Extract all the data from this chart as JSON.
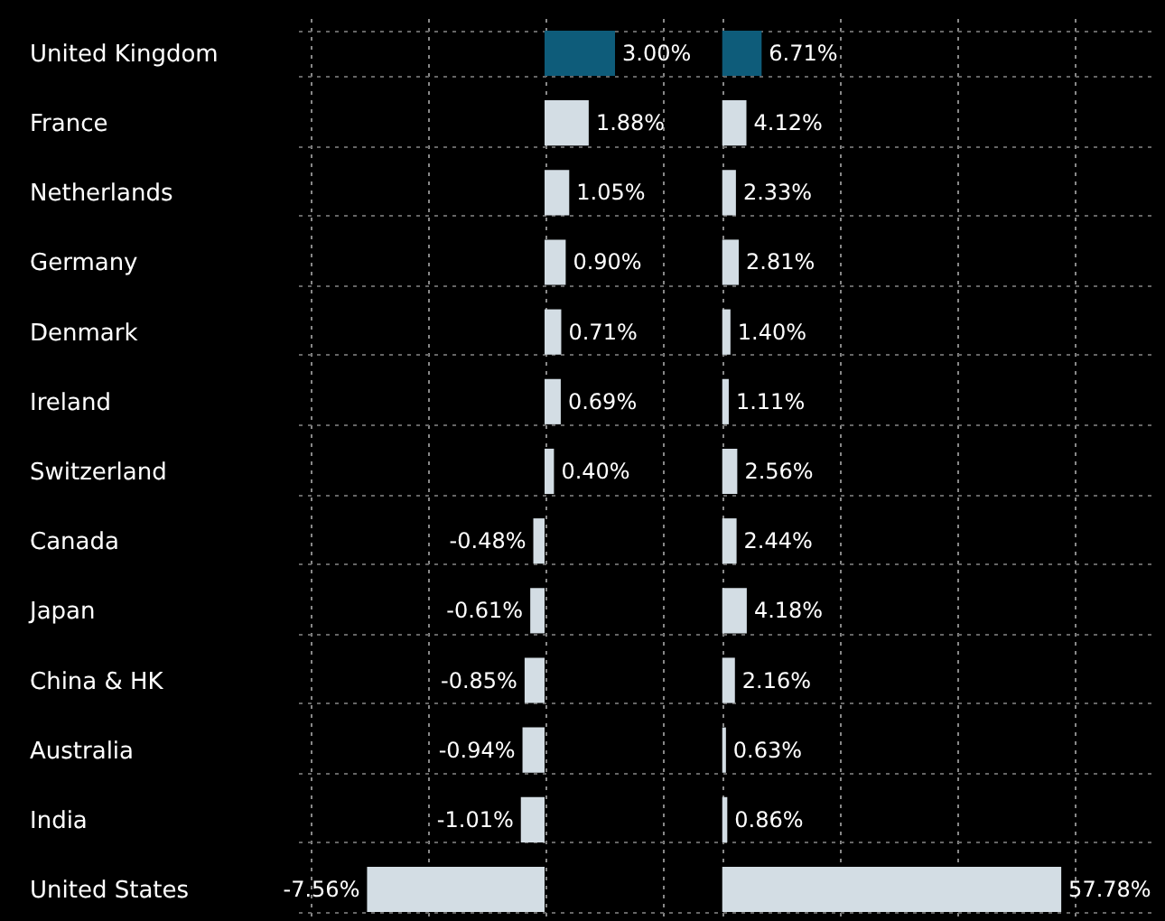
{
  "chart_data": [
    {
      "type": "bar",
      "orientation": "horizontal",
      "categories": [
        "United Kingdom",
        "France",
        "Netherlands",
        "Germany",
        "Denmark",
        "Ireland",
        "Switzerland",
        "Canada",
        "Japan",
        "China & HK",
        "Australia",
        "India",
        "United States"
      ],
      "values": [
        3.0,
        1.88,
        1.05,
        0.9,
        0.71,
        0.69,
        0.4,
        -0.48,
        -0.61,
        -0.85,
        -0.94,
        -1.01,
        -7.56
      ],
      "value_labels": [
        "3.00%",
        "1.88%",
        "1.05%",
        "0.90%",
        "0.71%",
        "0.69%",
        "0.40%",
        "-0.48%",
        "-0.61%",
        "-0.85%",
        "-0.94%",
        "-1.01%",
        "-7.56%"
      ],
      "colors": [
        "#0e5c7a",
        "#d3dde4",
        "#d3dde4",
        "#d3dde4",
        "#d3dde4",
        "#d3dde4",
        "#d3dde4",
        "#d3dde4",
        "#d3dde4",
        "#d3dde4",
        "#d3dde4",
        "#d3dde4",
        "#d3dde4"
      ],
      "xlim": [
        -10.5,
        7
      ],
      "xticks": [
        -10,
        -5,
        0,
        5
      ],
      "grid": true,
      "tick_labels": "y"
    },
    {
      "type": "bar",
      "orientation": "horizontal",
      "categories": [
        null,
        null,
        null,
        null,
        null,
        null,
        null,
        null,
        null,
        null,
        null,
        null,
        null
      ],
      "values": [
        6.71,
        4.12,
        2.33,
        2.81,
        1.4,
        1.11,
        2.56,
        2.44,
        4.18,
        2.16,
        0.63,
        0.86,
        57.78
      ],
      "value_labels": [
        "6.71%",
        "4.12%",
        "2.33%",
        "2.81%",
        "1.40%",
        "1.11%",
        "2.56%",
        "2.44%",
        "4.18%",
        "2.16%",
        "0.63%",
        "0.86%",
        "57.78%"
      ],
      "colors": [
        "#0e5c7a",
        "#d3dde4",
        "#d3dde4",
        "#d3dde4",
        "#d3dde4",
        "#d3dde4",
        "#d3dde4",
        "#d3dde4",
        "#d3dde4",
        "#d3dde4",
        "#d3dde4",
        "#d3dde4",
        "#d3dde4"
      ],
      "xlim": [
        -1.5,
        73
      ],
      "xticks": [
        0,
        20,
        40,
        60
      ],
      "grid": true,
      "tick_labels": false
    }
  ]
}
